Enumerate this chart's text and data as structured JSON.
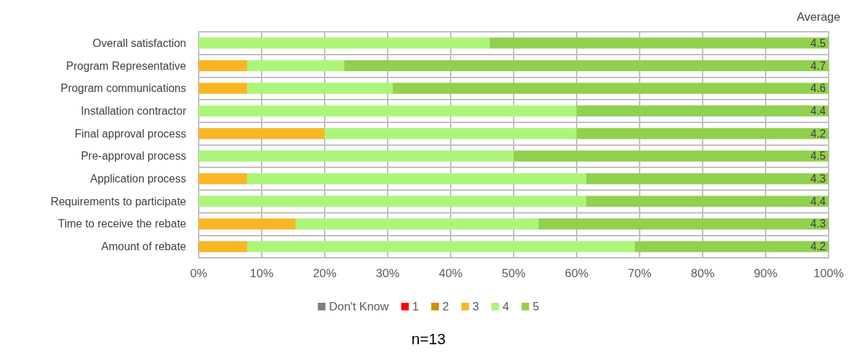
{
  "chart_data": {
    "type": "bar",
    "orientation": "horizontal",
    "stacked": true,
    "grid": true,
    "legend": "bottom",
    "categories": [
      "Overall satisfaction",
      "Program Representative",
      "Program communications",
      "Installation contractor",
      "Final approval process",
      "Pre-approval process",
      "Application process",
      "Requirements to participate",
      "Time to receive the rebate",
      "Amount of rebate"
    ],
    "series": [
      {
        "name": "Don't Know",
        "color": "#7f7f7f",
        "values": [
          0,
          0,
          0,
          0,
          0,
          0,
          0,
          0,
          0,
          0
        ]
      },
      {
        "name": "1",
        "color": "#ff0000",
        "values": [
          0,
          0,
          0,
          0,
          0,
          0,
          0,
          0,
          0,
          0
        ]
      },
      {
        "name": "2",
        "color": "#cc8f00",
        "values": [
          0,
          0,
          0,
          0,
          0,
          0,
          0,
          0,
          0,
          0
        ]
      },
      {
        "name": "3",
        "color": "#f9b624",
        "values": [
          0,
          7.7,
          7.7,
          0,
          20,
          0,
          7.7,
          0,
          15.4,
          7.7
        ]
      },
      {
        "name": "4",
        "color": "#adf57a",
        "values": [
          46.2,
          15.4,
          23.1,
          60,
          40,
          50,
          53.8,
          61.5,
          38.5,
          61.5
        ]
      },
      {
        "name": "5",
        "color": "#92d050",
        "values": [
          53.8,
          76.9,
          69.2,
          40,
          40,
          50,
          38.5,
          38.5,
          46.1,
          30.8
        ]
      }
    ],
    "xlim": [
      0,
      100
    ],
    "xticks": [
      {
        "value": 0,
        "label": "0%"
      },
      {
        "value": 10,
        "label": "10%"
      },
      {
        "value": 20,
        "label": "20%"
      },
      {
        "value": 30,
        "label": "30%"
      },
      {
        "value": 40,
        "label": "40%"
      },
      {
        "value": 50,
        "label": "50%"
      },
      {
        "value": 60,
        "label": "60%"
      },
      {
        "value": 70,
        "label": "70%"
      },
      {
        "value": 80,
        "label": "80%"
      },
      {
        "value": 90,
        "label": "90%"
      },
      {
        "value": 100,
        "label": "100%"
      }
    ],
    "annotations": [
      "Average",
      "n=13",
      "4.5",
      "4.7",
      "4.6",
      "4.4",
      "4.2",
      "4.5",
      "4.3",
      "4.4",
      "4.3",
      "4.2"
    ]
  }
}
